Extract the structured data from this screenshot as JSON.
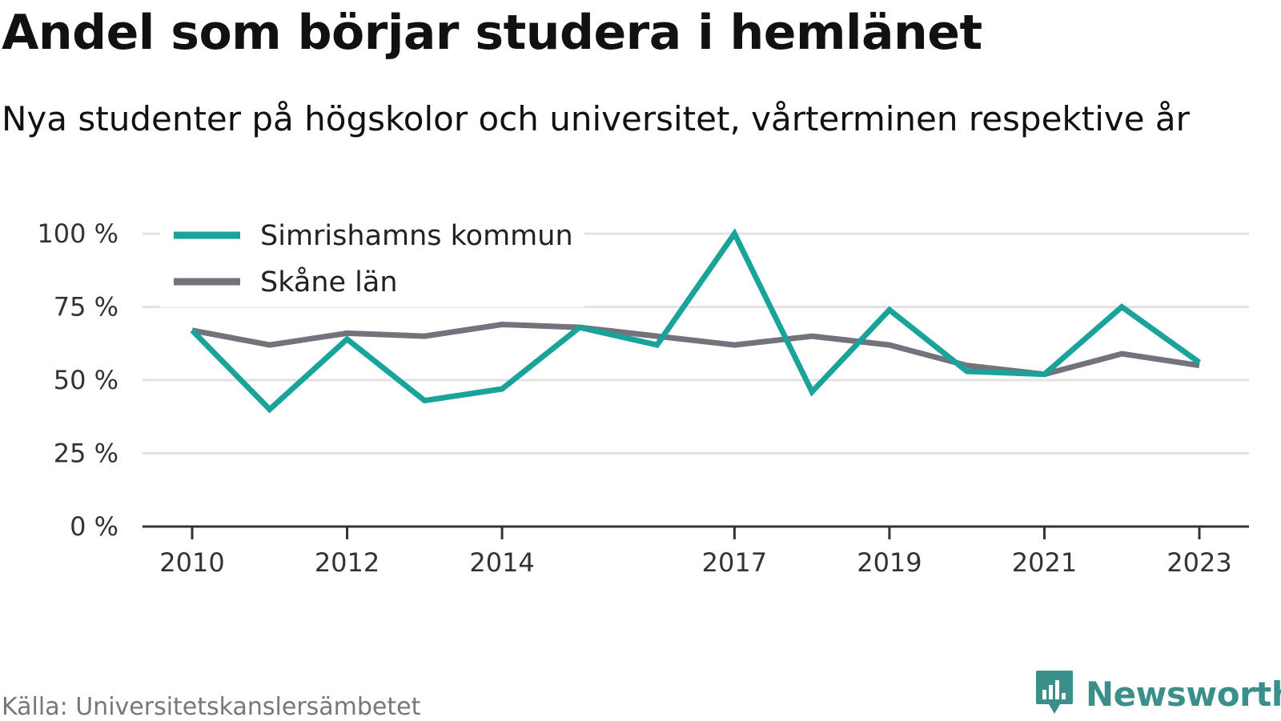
{
  "header": {
    "title": "Andel som börjar studera i hemlänet",
    "subtitle": "Nya studenter på högskolor och universitet, vårterminen respektive år"
  },
  "footer": {
    "source": "Källa: Universitetskanslersämbetet",
    "brand": "Newsworthy",
    "brand_icon": "bar-chart-speech-bubble-icon",
    "brand_color": "#3a8f8a"
  },
  "chart_data": {
    "type": "line",
    "title": "Andel som börjar studera i hemlänet",
    "subtitle": "Nya studenter på högskolor och universitet, vårterminen respektive år",
    "xlabel": "",
    "ylabel": "",
    "x": [
      2010,
      2011,
      2012,
      2013,
      2014,
      2015,
      2016,
      2017,
      2018,
      2019,
      2020,
      2021,
      2022,
      2023
    ],
    "x_tick_labels": [
      "2010",
      "2012",
      "2014",
      "2017",
      "2019",
      "2021",
      "2023"
    ],
    "y_ticks": [
      0,
      25,
      50,
      75,
      100
    ],
    "y_tick_labels": [
      "0 %",
      "25 %",
      "50 %",
      "75 %",
      "100 %"
    ],
    "ylim": [
      0,
      100
    ],
    "grid": true,
    "legend_position": "top-left",
    "series": [
      {
        "name": "Simrishamns kommun",
        "color": "#1aa39a",
        "values": [
          67,
          40,
          64,
          43,
          47,
          68,
          62,
          100,
          46,
          74,
          53,
          52,
          75,
          56
        ]
      },
      {
        "name": "Skåne län",
        "color": "#74727a",
        "values": [
          67,
          62,
          66,
          65,
          69,
          68,
          65,
          62,
          65,
          62,
          55,
          52,
          59,
          55
        ]
      }
    ]
  }
}
